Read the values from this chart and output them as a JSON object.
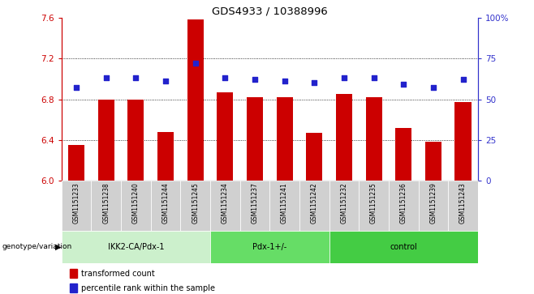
{
  "title": "GDS4933 / 10388996",
  "samples": [
    "GSM1151233",
    "GSM1151238",
    "GSM1151240",
    "GSM1151244",
    "GSM1151245",
    "GSM1151234",
    "GSM1151237",
    "GSM1151241",
    "GSM1151242",
    "GSM1151232",
    "GSM1151235",
    "GSM1151236",
    "GSM1151239",
    "GSM1151243"
  ],
  "red_values": [
    6.35,
    6.8,
    6.8,
    6.48,
    7.58,
    6.87,
    6.82,
    6.82,
    6.47,
    6.85,
    6.82,
    6.52,
    6.38,
    6.77
  ],
  "blue_values": [
    57,
    63,
    63,
    61,
    72,
    63,
    62,
    61,
    60,
    63,
    63,
    59,
    57,
    62
  ],
  "groups": [
    {
      "label": "IKK2-CA/Pdx-1",
      "start": 0,
      "end": 5,
      "color": "#ccf0cc"
    },
    {
      "label": "Pdx-1+/-",
      "start": 5,
      "end": 9,
      "color": "#66dd66"
    },
    {
      "label": "control",
      "start": 9,
      "end": 14,
      "color": "#44cc44"
    }
  ],
  "ylim_left": [
    6.0,
    7.6
  ],
  "ylim_right": [
    0,
    100
  ],
  "bar_color": "#cc0000",
  "dot_color": "#2222cc",
  "background_color": "#ffffff",
  "plot_bg": "#ffffff",
  "ylabel_left_color": "#cc0000",
  "ylabel_right_color": "#3333cc",
  "bar_width": 0.55,
  "baseline": 6.0,
  "label_bg": "#d0d0d0",
  "label_border": "#aaaaaa"
}
